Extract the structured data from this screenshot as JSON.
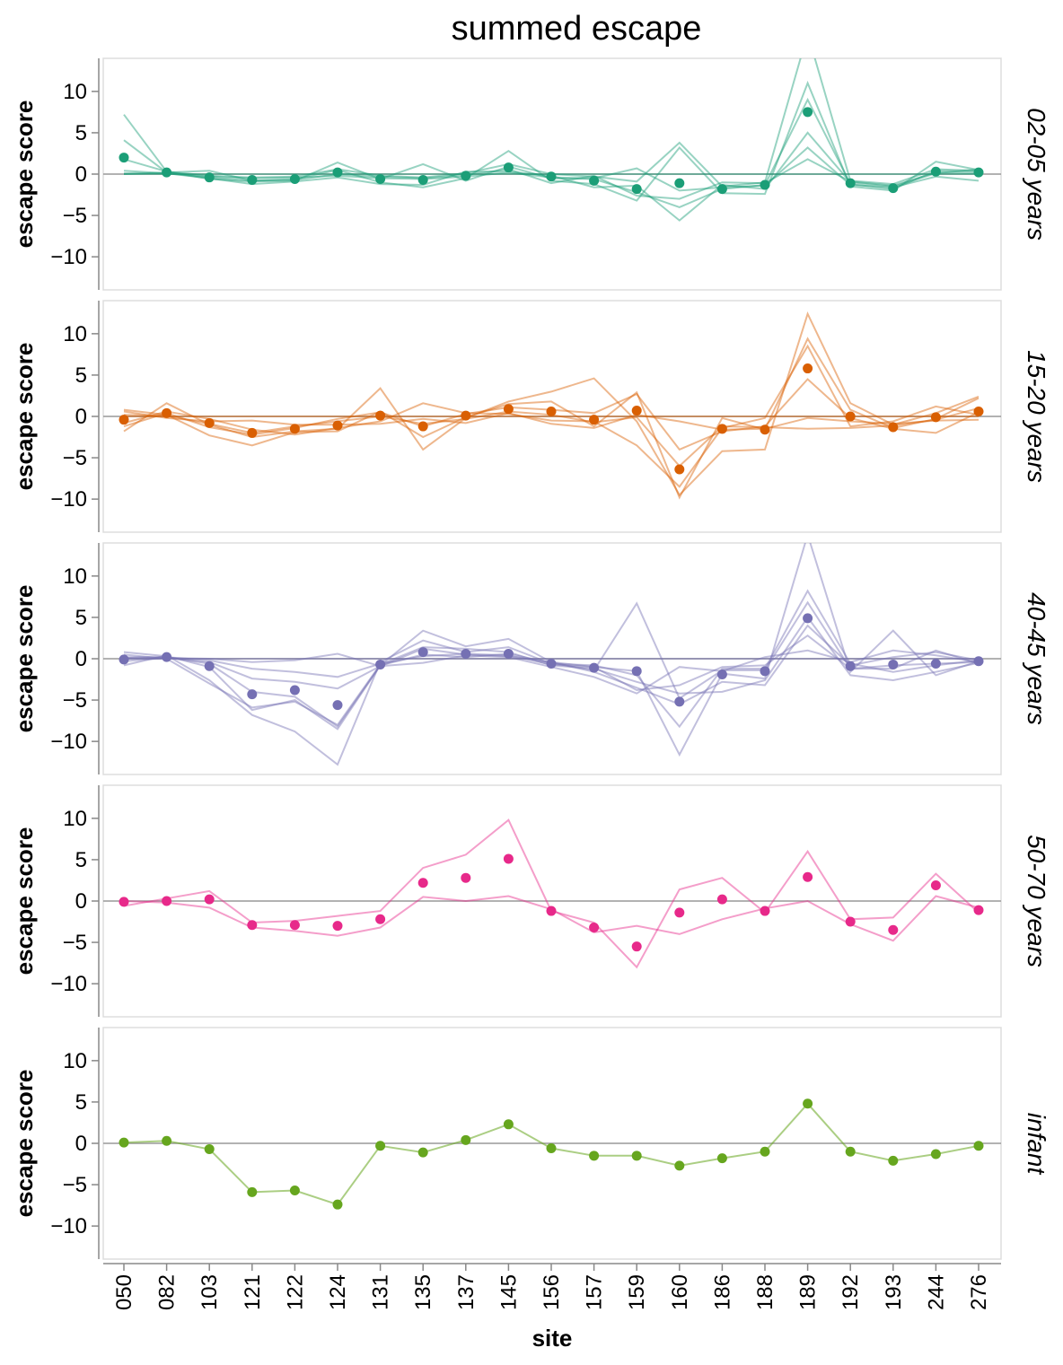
{
  "chart_data": {
    "type": "line",
    "title": "summed escape",
    "xlabel": "site",
    "ylabel": "escape score",
    "ylim": [
      -14,
      14
    ],
    "yticks": [
      10,
      5,
      0,
      -5,
      -10
    ],
    "categories": [
      "050",
      "082",
      "103",
      "121",
      "122",
      "124",
      "131",
      "135",
      "137",
      "145",
      "156",
      "157",
      "159",
      "160",
      "186",
      "188",
      "189",
      "192",
      "193",
      "244",
      "276"
    ],
    "zero_line": true,
    "panels": [
      {
        "label": "02-05 years",
        "color": "#1b9e77",
        "mean": [
          2.0,
          0.2,
          -0.4,
          -0.7,
          -0.6,
          0.2,
          -0.6,
          -0.7,
          -0.2,
          0.8,
          -0.3,
          -0.8,
          -1.8,
          -1.1,
          -1.8,
          -1.3,
          7.5,
          -1.1,
          -1.7,
          0.3,
          0.2
        ],
        "lines": [
          [
            7.2,
            0.3,
            -0.2,
            -0.4,
            -0.3,
            0.6,
            -0.2,
            -0.4,
            0.1,
            1.2,
            0.0,
            -0.3,
            -0.9,
            3.8,
            -1.5,
            -1.0,
            17.0,
            -0.8,
            -1.2,
            0.6,
            0.4
          ],
          [
            4.1,
            0.2,
            0.4,
            -0.8,
            -0.6,
            0.5,
            -1.0,
            -1.6,
            -0.5,
            2.8,
            -0.8,
            -1.2,
            -3.2,
            3.2,
            -2.3,
            -2.4,
            11.0,
            -1.5,
            -2.0,
            1.5,
            0.5
          ],
          [
            1.8,
            0.3,
            -0.6,
            -0.9,
            -0.8,
            1.4,
            -0.6,
            1.2,
            -0.8,
            0.9,
            -0.5,
            -0.6,
            -2.2,
            -4.0,
            -1.8,
            -1.3,
            9.0,
            -1.2,
            -1.8,
            0.4,
            0.3
          ],
          [
            0.4,
            0.1,
            -0.5,
            -1.2,
            -0.9,
            -0.4,
            -1.2,
            -1.3,
            0.3,
            0.3,
            -0.2,
            -1.6,
            -1.4,
            -5.6,
            -1.3,
            -1.8,
            5.0,
            -1.0,
            -1.5,
            0.1,
            0.6
          ],
          [
            0.0,
            0.2,
            -0.3,
            -0.5,
            -0.4,
            -0.2,
            -0.5,
            -0.6,
            -0.3,
            0.2,
            -0.4,
            -0.5,
            0.7,
            -2.0,
            -1.6,
            -1.4,
            3.2,
            -1.3,
            -1.6,
            -0.3,
            -0.8
          ],
          [
            0.1,
            0.1,
            -0.4,
            -0.8,
            -0.7,
            0.0,
            -0.3,
            -0.5,
            -0.1,
            0.6,
            -1.1,
            -0.2,
            -2.6,
            -3.0,
            -1.0,
            -1.1,
            1.8,
            -0.9,
            -1.4,
            0.2,
            0.1
          ],
          [
            0.0,
            0.0,
            0.0,
            0.0,
            0.0,
            0.0,
            0.0,
            0.0,
            0.0,
            0.0,
            0.0,
            0.0,
            0.0,
            0.0,
            0.0,
            0.0,
            0.0,
            0.0,
            0.0,
            0.0,
            0.0
          ]
        ]
      },
      {
        "label": "15-20 years",
        "color": "#d95f02",
        "mean": [
          -0.4,
          0.4,
          -0.8,
          -2.0,
          -1.5,
          -1.1,
          0.1,
          -1.2,
          0.1,
          0.9,
          0.6,
          -0.4,
          0.7,
          -6.4,
          -1.5,
          -1.6,
          5.8,
          0.0,
          -1.3,
          -0.1,
          0.6
        ],
        "lines": [
          [
            -1.8,
            1.6,
            -1.0,
            -2.5,
            -1.8,
            -1.5,
            3.4,
            -4.0,
            -0.2,
            1.8,
            3.0,
            4.6,
            -0.6,
            -9.5,
            -4.2,
            -4.0,
            12.4,
            1.6,
            -1.0,
            0.4,
            2.4
          ],
          [
            0.8,
            0.2,
            -2.3,
            -3.5,
            -1.9,
            -1.8,
            0.6,
            -2.5,
            -0.1,
            1.5,
            1.8,
            -1.2,
            2.9,
            -9.8,
            -0.2,
            -1.6,
            9.4,
            0.8,
            -1.4,
            -0.3,
            2.2
          ],
          [
            -0.8,
            0.6,
            -0.3,
            -1.6,
            -2.2,
            -1.4,
            -0.6,
            1.6,
            0.4,
            0.3,
            -0.5,
            -0.6,
            -3.5,
            -8.5,
            -1.4,
            -0.2,
            8.5,
            -1.2,
            -0.6,
            1.2,
            0.2
          ],
          [
            -1.2,
            0.4,
            -1.3,
            -2.2,
            -1.4,
            -0.3,
            0.5,
            -1.2,
            0.3,
            1.1,
            0.8,
            0.4,
            2.7,
            -4.0,
            -1.8,
            -1.2,
            4.5,
            -0.2,
            -1.5,
            -2.0,
            0.5
          ],
          [
            0.6,
            -0.2,
            -0.6,
            -0.5,
            -1.0,
            -1.0,
            -0.9,
            -0.3,
            -0.8,
            0.4,
            -0.9,
            -1.4,
            0.2,
            -0.6,
            -1.6,
            -1.5,
            -0.2,
            -0.6,
            -0.9,
            -0.5,
            -0.4
          ],
          [
            0.2,
            0.1,
            -0.9,
            -2.0,
            -1.2,
            -0.6,
            0.0,
            -0.9,
            -0.3,
            0.6,
            0.2,
            -0.7,
            -0.1,
            -6.0,
            -1.2,
            -1.3,
            -1.5,
            -1.4,
            -1.1,
            -0.4,
            1.0
          ],
          [
            0.0,
            0.0,
            0.0,
            0.0,
            0.0,
            0.0,
            0.0,
            0.0,
            0.0,
            0.0,
            0.0,
            0.0,
            0.0,
            0.0,
            0.0,
            0.0,
            0.0,
            0.0,
            0.0,
            0.0,
            0.0
          ]
        ]
      },
      {
        "label": "40-45 years",
        "color": "#7570b3",
        "mean": [
          -0.1,
          0.2,
          -0.9,
          -4.3,
          -3.8,
          -5.6,
          -0.7,
          0.8,
          0.6,
          0.6,
          -0.6,
          -1.1,
          -1.5,
          -5.2,
          -1.9,
          -1.5,
          4.9,
          -0.9,
          -0.7,
          -0.6,
          -0.3
        ],
        "lines": [
          [
            0.8,
            0.3,
            -1.0,
            -6.2,
            -5.0,
            -8.5,
            -0.8,
            3.4,
            1.5,
            2.4,
            -0.4,
            -1.0,
            -1.5,
            -11.6,
            -1.8,
            -2.4,
            15.0,
            -1.6,
            3.4,
            -2.0,
            -0.3
          ],
          [
            -0.8,
            0.4,
            -2.6,
            -6.8,
            -8.8,
            -12.8,
            -0.4,
            2.2,
            0.8,
            1.4,
            -0.6,
            -0.8,
            -2.0,
            -8.2,
            -1.2,
            -1.2,
            8.2,
            -0.6,
            -1.6,
            -0.8,
            -0.2
          ],
          [
            0.2,
            0.2,
            -0.6,
            -4.0,
            -4.6,
            -8.2,
            -0.8,
            0.5,
            0.2,
            0.6,
            -0.5,
            -1.4,
            6.7,
            -4.8,
            -1.4,
            -1.4,
            6.8,
            -1.2,
            -0.8,
            -0.6,
            -0.4
          ],
          [
            0.5,
            0.0,
            -3.0,
            -5.9,
            -5.2,
            -8.0,
            -0.7,
            1.4,
            1.2,
            0.8,
            -0.8,
            -1.2,
            -2.8,
            -4.2,
            -4.0,
            -2.6,
            5.0,
            -2.0,
            -2.6,
            -1.6,
            -0.5
          ],
          [
            -0.3,
            0.1,
            -0.4,
            -2.4,
            -2.8,
            -3.6,
            -0.9,
            1.2,
            0.5,
            0.3,
            -0.4,
            -1.6,
            -3.5,
            -5.5,
            -2.8,
            -3.2,
            4.0,
            -0.8,
            0.2,
            0.8,
            -0.2
          ],
          [
            0.1,
            0.2,
            -0.2,
            -1.2,
            -1.6,
            -2.2,
            -0.6,
            0.3,
            0.6,
            0.4,
            -0.7,
            -1.0,
            -3.8,
            -3.2,
            -1.0,
            -0.8,
            2.8,
            -1.2,
            -1.2,
            1.0,
            -0.6
          ],
          [
            0.0,
            0.1,
            0.0,
            -0.4,
            -0.2,
            0.6,
            -0.9,
            -0.5,
            0.4,
            0.2,
            -1.0,
            -2.2,
            -4.2,
            -1.0,
            -1.5,
            0.2,
            1.0,
            -0.4,
            1.0,
            0.4,
            -0.4
          ],
          [
            0.0,
            0.0,
            0.0,
            0.0,
            0.0,
            0.0,
            0.0,
            0.0,
            0.0,
            0.0,
            0.0,
            0.0,
            0.0,
            0.0,
            0.0,
            0.0,
            0.0,
            0.0,
            0.0,
            0.0,
            0.0
          ]
        ]
      },
      {
        "label": "50-70 years",
        "color": "#e7298a",
        "mean": [
          -0.1,
          0.0,
          0.2,
          -2.9,
          -2.9,
          -3.0,
          -2.2,
          2.2,
          2.8,
          5.1,
          -1.2,
          -3.2,
          -5.5,
          -1.4,
          0.2,
          -1.2,
          2.9,
          -2.5,
          -3.5,
          1.9,
          -1.1
        ],
        "lines": [
          [
            -0.6,
            0.3,
            1.2,
            -2.6,
            -2.4,
            -1.8,
            -1.2,
            4.0,
            5.6,
            9.8,
            -1.2,
            -2.6,
            -8.0,
            1.4,
            2.8,
            -1.4,
            6.0,
            -2.2,
            -2.0,
            3.3,
            -1.4
          ],
          [
            0.0,
            -0.2,
            -0.8,
            -3.2,
            -3.6,
            -4.2,
            -3.2,
            0.5,
            0.0,
            0.6,
            -1.0,
            -3.8,
            -3.0,
            -4.0,
            -2.2,
            -0.9,
            0.0,
            -2.8,
            -4.8,
            0.6,
            -0.8
          ]
        ]
      },
      {
        "label": "infant",
        "color": "#66a61e",
        "mean": [
          0.1,
          0.3,
          -0.7,
          -5.9,
          -5.7,
          -7.4,
          -0.3,
          -1.1,
          0.4,
          2.3,
          -0.6,
          -1.5,
          -1.5,
          -2.7,
          -1.8,
          -1.0,
          4.8,
          -1.0,
          -2.1,
          -1.3,
          -0.3
        ],
        "lines": [
          [
            0.1,
            0.3,
            -0.7,
            -5.9,
            -5.7,
            -7.4,
            -0.3,
            -1.1,
            0.4,
            2.3,
            -0.6,
            -1.5,
            -1.5,
            -2.7,
            -1.8,
            -1.0,
            4.8,
            -1.0,
            -2.1,
            -1.3,
            -0.3
          ]
        ]
      }
    ]
  }
}
